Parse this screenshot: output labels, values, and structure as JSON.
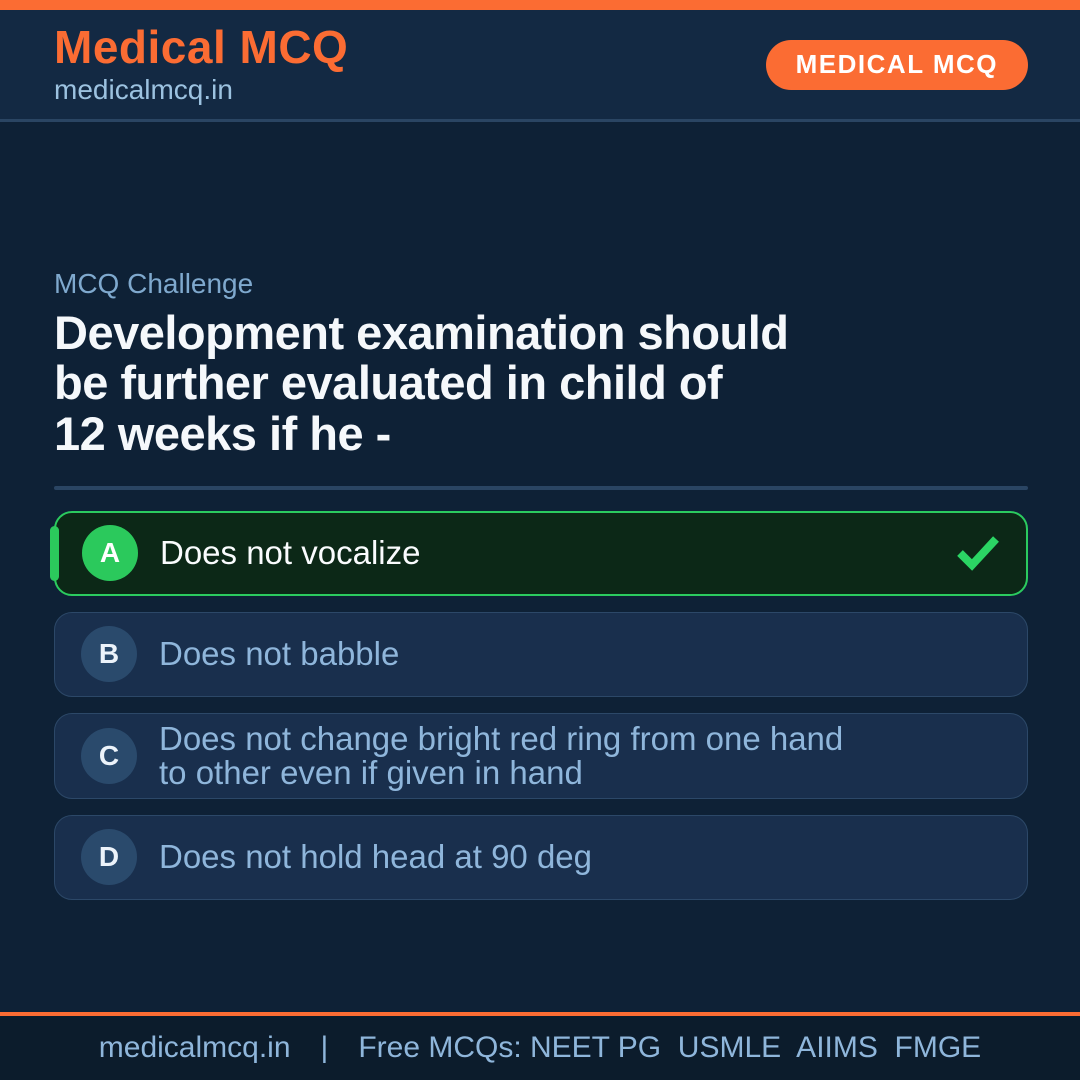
{
  "colors": {
    "accent_orange": "#FB6C33",
    "page_bg": "#0E2136",
    "header_bg": "#132943",
    "footer_bg": "#0C1C2C",
    "correct_green": "#2BC95C",
    "check_green": "#2BD564",
    "option_bg": "#192F4D",
    "option_text": "#8FB6DB"
  },
  "header": {
    "title": "Medical MCQ",
    "subtitle": "medicalmcq.in",
    "badge": "MEDICAL MCQ"
  },
  "question": {
    "kicker": "MCQ Challenge",
    "lines": [
      "Development examination should",
      "be further evaluated in child of",
      "12 weeks if he -"
    ]
  },
  "options": [
    {
      "label": "A",
      "lines": [
        "Does not vocalize"
      ],
      "is_correct": true
    },
    {
      "label": "B",
      "lines": [
        "Does not babble"
      ],
      "is_correct": false
    },
    {
      "label": "C",
      "lines": [
        "Does not change bright red ring from one hand",
        "to other even if given in hand"
      ],
      "is_correct": false
    },
    {
      "label": "D",
      "lines": [
        "Does not hold head at 90 deg"
      ],
      "is_correct": false
    }
  ],
  "footer": {
    "site": "medicalmcq.in",
    "separator": "|",
    "tagline": "Free MCQs: NEET PG  USMLE  AIIMS  FMGE"
  }
}
